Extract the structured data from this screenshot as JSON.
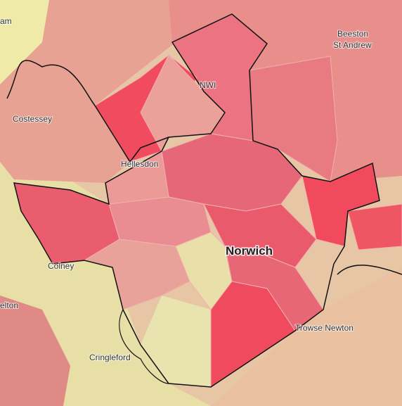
{
  "map": {
    "labels": [
      "am",
      "Beeston",
      "St Andrew",
      "NWI",
      "Costessey",
      "Hellesdon",
      "Norwich",
      "Colney",
      "elton",
      "Cringleford",
      "Trowse Newton"
    ]
  }
}
